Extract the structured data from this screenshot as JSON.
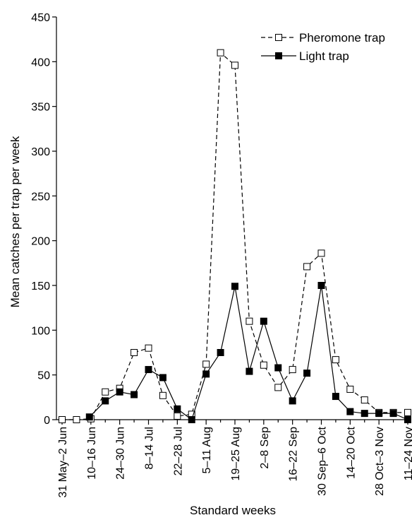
{
  "chart_data": {
    "type": "line",
    "xlabel": "Standard weeks",
    "ylabel": "Mean catches per trap per week",
    "ylim": [
      0,
      450
    ],
    "yticks": [
      0,
      50,
      100,
      150,
      200,
      250,
      300,
      350,
      400,
      450
    ],
    "x_tick_labels": [
      {
        "index": 0,
        "label": "31 May–2 Jun"
      },
      {
        "index": 2,
        "label": "10–16 Jun"
      },
      {
        "index": 4,
        "label": "24–30 Jun"
      },
      {
        "index": 6,
        "label": "8–14 Jul"
      },
      {
        "index": 8,
        "label": "22–28 Jul"
      },
      {
        "index": 10,
        "label": "5–11 Aug"
      },
      {
        "index": 12,
        "label": "19–25 Aug"
      },
      {
        "index": 14,
        "label": "2–8 Sep"
      },
      {
        "index": 16,
        "label": "16–22 Sep"
      },
      {
        "index": 18,
        "label": "30 Sep–6 Oct"
      },
      {
        "index": 20,
        "label": "14–20 Oct"
      },
      {
        "index": 22,
        "label": "28 Oct–3 Nov"
      },
      {
        "index": 24,
        "label": "11–24 Nov"
      }
    ],
    "x": [
      0,
      1,
      2,
      3,
      4,
      5,
      6,
      7,
      8,
      9,
      10,
      11,
      12,
      13,
      14,
      15,
      16,
      17,
      18,
      19,
      20,
      21,
      22,
      23,
      24
    ],
    "series": [
      {
        "name": "Pheromone trap",
        "style": "dashed-open-square",
        "color": "#000000",
        "points": [
          [
            0,
            0
          ],
          [
            1,
            0
          ],
          [
            2,
            1
          ],
          [
            3,
            31
          ],
          [
            4,
            35
          ],
          [
            5,
            75
          ],
          [
            6,
            80
          ],
          [
            7,
            27
          ],
          [
            8,
            4
          ],
          [
            9,
            6
          ],
          [
            10,
            62
          ],
          [
            11,
            410
          ],
          [
            12,
            396
          ],
          [
            13,
            110
          ],
          [
            14,
            61
          ],
          [
            15,
            36
          ],
          [
            16,
            56
          ],
          [
            17,
            171
          ],
          [
            18,
            186
          ],
          [
            19,
            67
          ],
          [
            20,
            34
          ],
          [
            21,
            22
          ],
          [
            22,
            8
          ],
          [
            23,
            8
          ],
          [
            24,
            8
          ]
        ]
      },
      {
        "name": "Light trap",
        "style": "solid-filled-square",
        "color": "#000000",
        "points": [
          [
            1.9,
            3
          ],
          [
            3,
            21
          ],
          [
            4,
            31
          ],
          [
            5,
            28
          ],
          [
            6,
            56
          ],
          [
            7,
            47
          ],
          [
            8,
            12
          ],
          [
            9,
            0
          ],
          [
            10,
            51
          ],
          [
            11,
            75
          ],
          [
            12,
            149
          ],
          [
            13,
            54
          ],
          [
            14,
            110
          ],
          [
            15,
            58
          ],
          [
            16,
            21
          ],
          [
            17,
            52
          ],
          [
            18,
            150
          ],
          [
            19,
            26
          ],
          [
            20,
            9
          ],
          [
            21,
            7
          ],
          [
            22,
            7
          ],
          [
            23,
            7
          ],
          [
            24,
            0
          ]
        ]
      }
    ],
    "legend_position": "top-right",
    "grid": false
  }
}
